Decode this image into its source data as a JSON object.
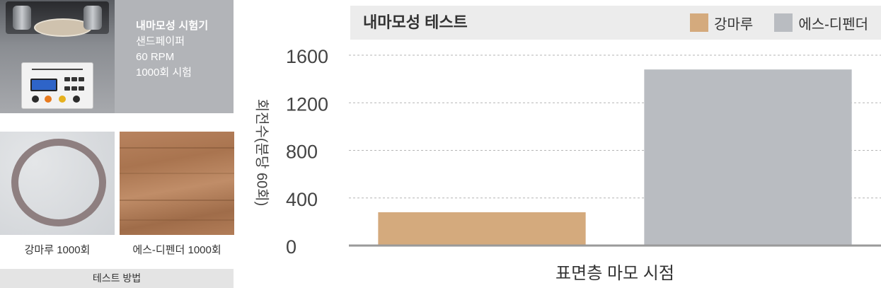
{
  "method_panel": {
    "spec": {
      "title": "내마모성 시험기",
      "lines": [
        "샌드페이퍼",
        "60 RPM",
        "1000회 시험"
      ]
    },
    "samples": [
      {
        "label": "강마루 1000회"
      },
      {
        "label": "에스-디펜더 1000회"
      }
    ],
    "footer": "테스트 방법"
  },
  "chart_data": {
    "type": "bar",
    "title": "내마모성 테스트",
    "xlabel": "표면층 마모 시점",
    "ylabel": "회전수(분당 60회)",
    "ylim": [
      0,
      1600
    ],
    "yticks": [
      0,
      400,
      800,
      1200,
      1600
    ],
    "grid": true,
    "legend_position": "top-right",
    "series": [
      {
        "name": "강마루",
        "color": "#d4aa7d",
        "values": [
          280
        ]
      },
      {
        "name": "에스-디펜더",
        "color": "#b9bcc1",
        "values": [
          1480
        ]
      }
    ]
  }
}
